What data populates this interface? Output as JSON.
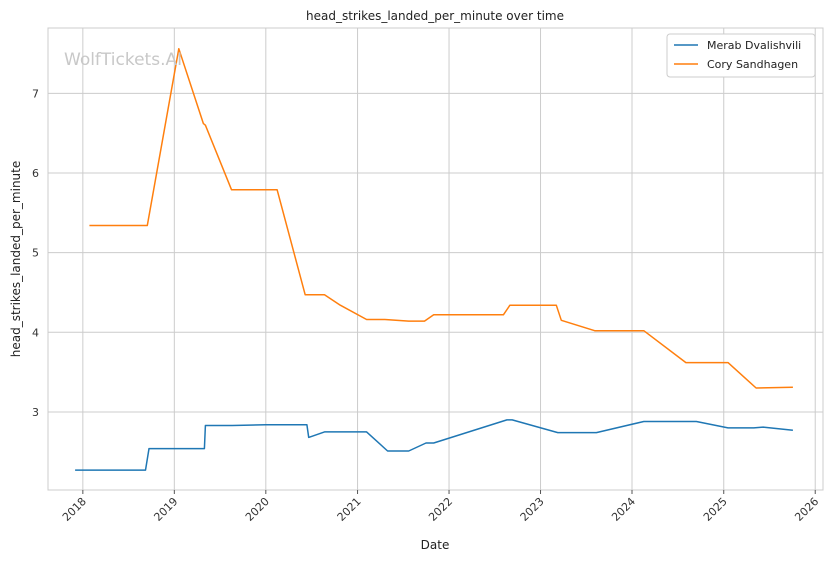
{
  "chart_data": {
    "type": "line",
    "title": "head_strikes_landed_per_minute over time",
    "xlabel": "Date",
    "ylabel": "head_strikes_landed_per_minute",
    "watermark": "WolfTickets.AI",
    "x_ticks": [
      "2018",
      "2019",
      "2020",
      "2021",
      "2022",
      "2023",
      "2024",
      "2025",
      "2026"
    ],
    "y_ticks": [
      3,
      4,
      5,
      6,
      7
    ],
    "xlim": [
      "2017-08-15",
      "2026-02-01"
    ],
    "ylim": [
      2.02,
      7.82
    ],
    "grid": true,
    "legend_position": "top-right",
    "series": [
      {
        "name": "Merab Dvalishvili",
        "color": "#1f77b4",
        "points": [
          [
            "2017-12-01",
            2.27
          ],
          [
            "2018-09-08",
            2.27
          ],
          [
            "2018-09-22",
            2.54
          ],
          [
            "2019-05-01",
            2.54
          ],
          [
            "2019-05-05",
            2.83
          ],
          [
            "2019-08-20",
            2.83
          ],
          [
            "2020-01-01",
            2.84
          ],
          [
            "2020-06-13",
            2.84
          ],
          [
            "2020-06-20",
            2.68
          ],
          [
            "2020-08-22",
            2.75
          ],
          [
            "2021-02-06",
            2.75
          ],
          [
            "2021-05-01",
            2.51
          ],
          [
            "2021-07-24",
            2.51
          ],
          [
            "2021-10-01",
            2.61
          ],
          [
            "2021-11-01",
            2.61
          ],
          [
            "2022-08-20",
            2.9
          ],
          [
            "2022-09-10",
            2.9
          ],
          [
            "2023-03-11",
            2.74
          ],
          [
            "2023-08-12",
            2.74
          ],
          [
            "2024-02-17",
            2.88
          ],
          [
            "2024-09-14",
            2.88
          ],
          [
            "2025-01-18",
            2.8
          ],
          [
            "2025-05-01",
            2.8
          ],
          [
            "2025-06-07",
            2.81
          ],
          [
            "2025-10-04",
            2.77
          ]
        ]
      },
      {
        "name": "Cory Sandhagen",
        "color": "#ff7f0e",
        "points": [
          [
            "2018-01-27",
            5.34
          ],
          [
            "2018-09-15",
            5.34
          ],
          [
            "2019-01-19",
            7.56
          ],
          [
            "2019-04-27",
            6.62
          ],
          [
            "2019-05-05",
            6.6
          ],
          [
            "2019-08-17",
            5.79
          ],
          [
            "2020-02-15",
            5.79
          ],
          [
            "2020-06-06",
            4.47
          ],
          [
            "2020-08-22",
            4.47
          ],
          [
            "2020-10-24",
            4.34
          ],
          [
            "2021-02-06",
            4.16
          ],
          [
            "2021-04-20",
            4.16
          ],
          [
            "2021-07-24",
            4.14
          ],
          [
            "2021-09-25",
            4.14
          ],
          [
            "2021-11-01",
            4.22
          ],
          [
            "2022-08-06",
            4.22
          ],
          [
            "2022-09-01",
            4.34
          ],
          [
            "2023-03-05",
            4.34
          ],
          [
            "2023-03-25",
            4.15
          ],
          [
            "2023-08-05",
            4.02
          ],
          [
            "2024-02-17",
            4.02
          ],
          [
            "2024-08-03",
            3.62
          ],
          [
            "2025-01-18",
            3.62
          ],
          [
            "2025-05-10",
            3.3
          ],
          [
            "2025-10-04",
            3.31
          ]
        ]
      }
    ]
  }
}
